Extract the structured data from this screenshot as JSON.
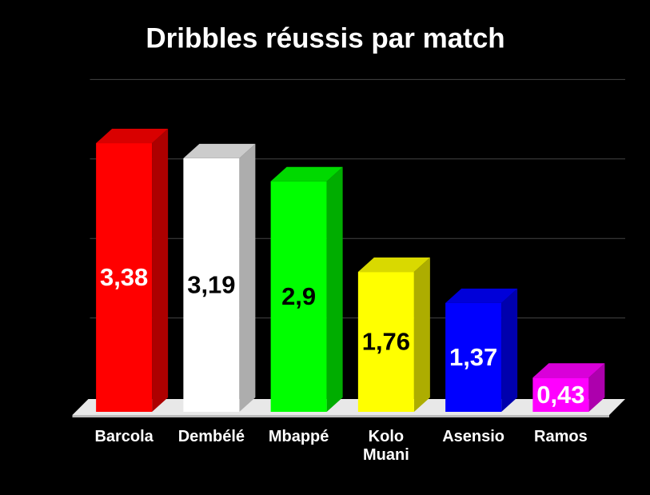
{
  "chart_data": {
    "type": "bar3d",
    "title": "Dribbles réussis par match",
    "categories": [
      "Barcola",
      "Dembélé",
      "Mbappé",
      "Kolo Muani",
      "Asensio",
      "Ramos"
    ],
    "values": [
      3.38,
      3.19,
      2.9,
      1.76,
      1.37,
      0.43
    ],
    "value_labels": [
      "3,38",
      "3,19",
      "2,9",
      "1,76",
      "1,37",
      "0,43"
    ],
    "colors": [
      "#ff0000",
      "#ffffff",
      "#00ff00",
      "#ffff00",
      "#0000ff",
      "#ff00ff"
    ],
    "ylim": [
      0,
      4
    ],
    "yticks": [
      0,
      1,
      2,
      3,
      4
    ],
    "ytick_labels": false,
    "grid": true
  }
}
